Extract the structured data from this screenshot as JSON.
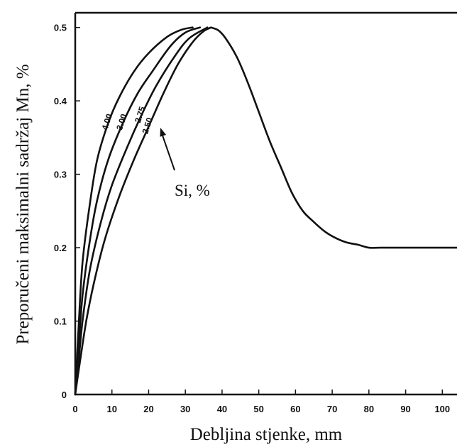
{
  "chart_data": {
    "type": "line",
    "xlabel": "Debljina stjenke, mm",
    "ylabel": "Preporučeni maksimalni sadržaj Mn, %",
    "xlim": [
      0,
      104
    ],
    "ylim": [
      0,
      0.52
    ],
    "x_ticks": [
      "0",
      "10",
      "20",
      "30",
      "40",
      "50",
      "60",
      "70",
      "80",
      "90",
      "100"
    ],
    "y_ticks": [
      "0",
      "0.1",
      "0.2",
      "0.3",
      "0.4",
      "0.5"
    ],
    "grid": false,
    "legend": "none",
    "annotation": "Si, %",
    "series": [
      {
        "name": "4.00",
        "points": [
          [
            0,
            0
          ],
          [
            1,
            0.1
          ],
          [
            2,
            0.18
          ],
          [
            4,
            0.26
          ],
          [
            6,
            0.32
          ],
          [
            9,
            0.37
          ],
          [
            12,
            0.405
          ],
          [
            16,
            0.44
          ],
          [
            20,
            0.465
          ],
          [
            25,
            0.487
          ],
          [
            29,
            0.497
          ],
          [
            32,
            0.5
          ]
        ]
      },
      {
        "name": "3.00",
        "points": [
          [
            0,
            0
          ],
          [
            1,
            0.07
          ],
          [
            2,
            0.135
          ],
          [
            4,
            0.21
          ],
          [
            6,
            0.265
          ],
          [
            9,
            0.32
          ],
          [
            13,
            0.37
          ],
          [
            17,
            0.41
          ],
          [
            21,
            0.44
          ],
          [
            26,
            0.475
          ],
          [
            30,
            0.493
          ],
          [
            34,
            0.5
          ]
        ]
      },
      {
        "name": "2.75",
        "points": [
          [
            0,
            0
          ],
          [
            1,
            0.05
          ],
          [
            2,
            0.1
          ],
          [
            4,
            0.17
          ],
          [
            7,
            0.235
          ],
          [
            10,
            0.285
          ],
          [
            14,
            0.335
          ],
          [
            18,
            0.38
          ],
          [
            22,
            0.42
          ],
          [
            27,
            0.46
          ],
          [
            31,
            0.485
          ],
          [
            36,
            0.5
          ]
        ]
      },
      {
        "name": "2.50",
        "points": [
          [
            0,
            0
          ],
          [
            1,
            0.035
          ],
          [
            3,
            0.1
          ],
          [
            5,
            0.15
          ],
          [
            8,
            0.21
          ],
          [
            12,
            0.27
          ],
          [
            16,
            0.32
          ],
          [
            20,
            0.365
          ],
          [
            24,
            0.41
          ],
          [
            28,
            0.45
          ],
          [
            32,
            0.48
          ],
          [
            35,
            0.495
          ],
          [
            37,
            0.5
          ]
        ]
      },
      {
        "name": "",
        "points": [
          [
            37,
            0.5
          ],
          [
            39,
            0.496
          ],
          [
            41,
            0.485
          ],
          [
            44,
            0.46
          ],
          [
            47,
            0.425
          ],
          [
            50,
            0.385
          ],
          [
            53,
            0.345
          ],
          [
            56,
            0.31
          ],
          [
            59,
            0.275
          ],
          [
            62,
            0.25
          ],
          [
            65,
            0.235
          ],
          [
            68,
            0.222
          ],
          [
            71,
            0.213
          ],
          [
            74,
            0.207
          ],
          [
            77,
            0.204
          ],
          [
            80,
            0.2
          ],
          [
            83,
            0.2
          ],
          [
            90,
            0.2
          ],
          [
            100,
            0.2
          ],
          [
            104,
            0.2
          ]
        ]
      }
    ]
  }
}
